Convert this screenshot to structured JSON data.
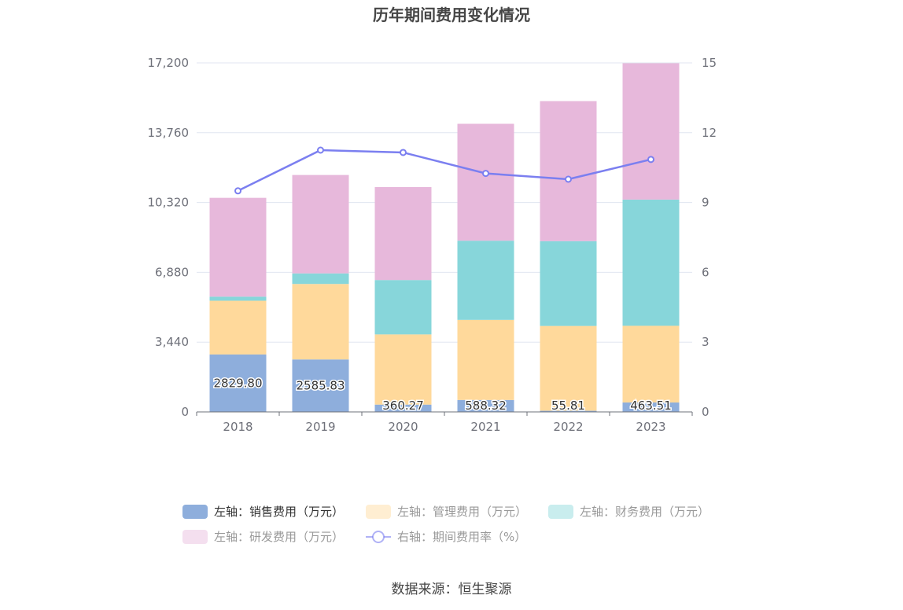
{
  "chart_data": {
    "type": "bar",
    "title": "历年期间费用变化情况",
    "categories": [
      "2018",
      "2019",
      "2020",
      "2021",
      "2022",
      "2023"
    ],
    "stacked": true,
    "left_axis": {
      "min": 0,
      "max": 17200,
      "ticks": [
        "0",
        "3,440",
        "6,880",
        "10,320",
        "13,760",
        "17,200"
      ]
    },
    "right_axis": {
      "min": 0,
      "max": 15,
      "ticks": [
        "0",
        "3",
        "6",
        "9",
        "12",
        "15"
      ]
    },
    "series": [
      {
        "name": "左轴：销售费用（万元）",
        "axis": "left",
        "kind": "bar",
        "color": "#8eaedc",
        "values": [
          2829.8,
          2585.83,
          360.27,
          588.32,
          55.81,
          463.51
        ],
        "labels": [
          "2829.80",
          "2585.83",
          "360.27",
          "588.32",
          "55.81",
          "463.51"
        ]
      },
      {
        "name": "左轴：管理费用（万元）",
        "axis": "left",
        "kind": "bar",
        "color": "#ffd99b",
        "values": [
          2650,
          3720,
          3460,
          3950,
          4180,
          3780
        ]
      },
      {
        "name": "左轴：财务费用（万元）",
        "axis": "left",
        "kind": "bar",
        "color": "#87d6da",
        "values": [
          200,
          520,
          2680,
          3900,
          4180,
          6220
        ]
      },
      {
        "name": "左轴：研发费用（万元）",
        "axis": "left",
        "kind": "bar",
        "color": "#e7b8db",
        "values": [
          4870,
          4850,
          4580,
          5760,
          6900,
          6720
        ]
      },
      {
        "name": "右轴：期间费用率（%）",
        "axis": "right",
        "kind": "line",
        "color": "#7b7ff0",
        "values": [
          9.5,
          11.25,
          11.15,
          10.25,
          10.0,
          10.85
        ]
      }
    ],
    "grid": true,
    "legend_position": "bottom"
  },
  "source": "数据来源：恒生聚源"
}
